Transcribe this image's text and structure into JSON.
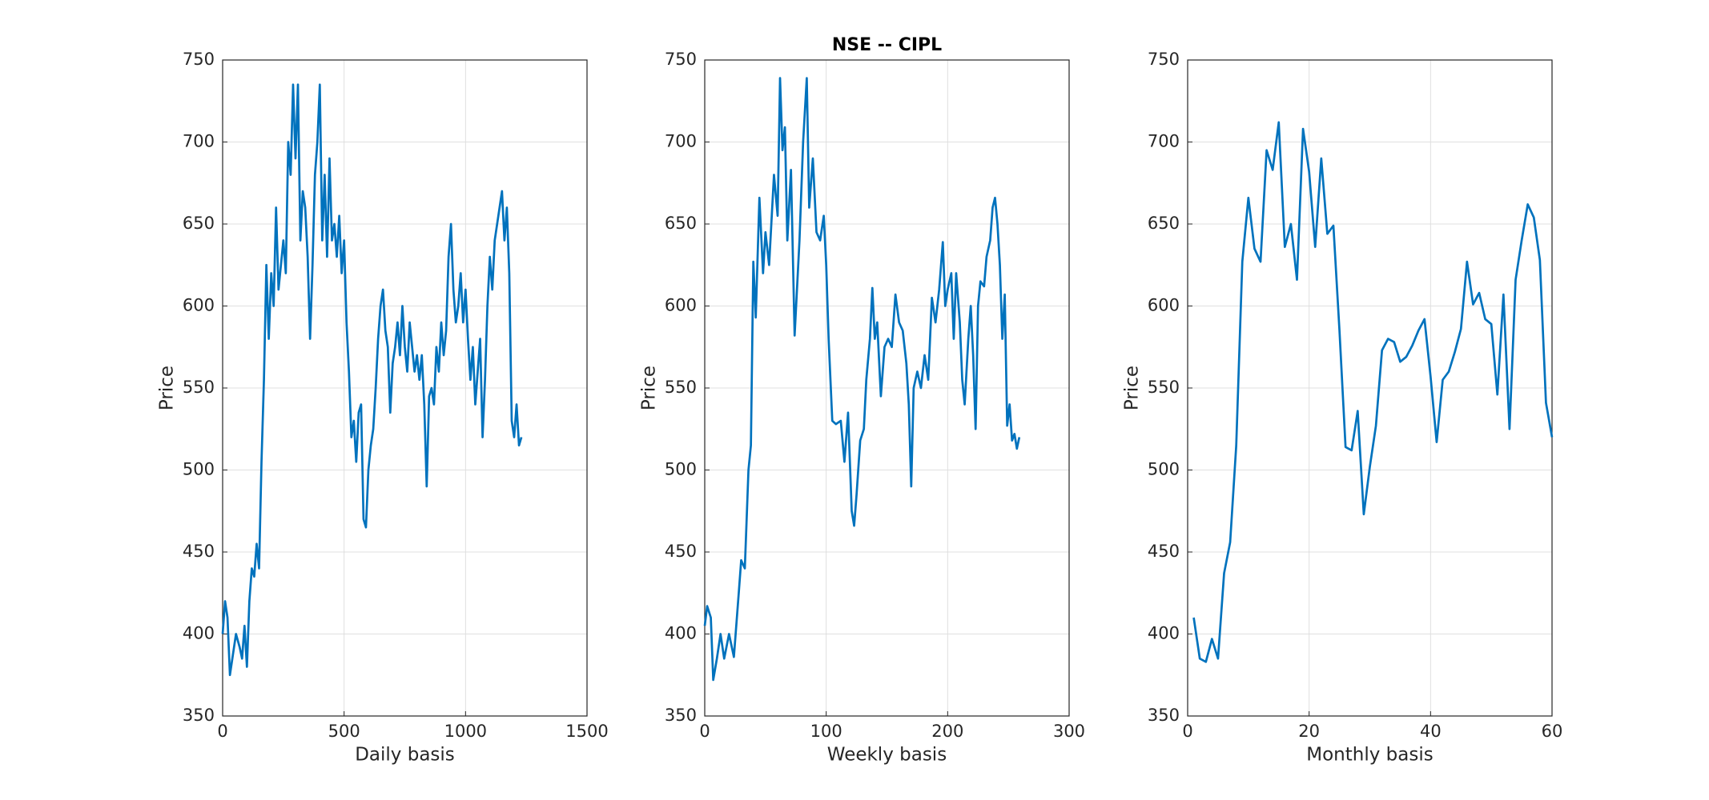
{
  "chart_data": [
    {
      "type": "line",
      "xlabel": "Daily basis",
      "ylabel": "Price",
      "xlim": [
        0,
        1500
      ],
      "xticks": [
        0,
        500,
        1000,
        1500
      ],
      "ylim": [
        350,
        750
      ],
      "yticks": [
        350,
        400,
        450,
        500,
        550,
        600,
        650,
        700,
        750
      ],
      "grid": true,
      "series": [
        {
          "color": "#0072bd",
          "x": [
            0,
            10,
            20,
            30,
            40,
            55,
            70,
            80,
            90,
            100,
            110,
            120,
            130,
            140,
            150,
            160,
            170,
            180,
            190,
            200,
            210,
            220,
            230,
            250,
            260,
            270,
            280,
            290,
            300,
            310,
            320,
            330,
            340,
            350,
            360,
            370,
            380,
            390,
            400,
            410,
            420,
            430,
            440,
            450,
            460,
            470,
            480,
            490,
            500,
            510,
            520,
            530,
            540,
            550,
            560,
            570,
            580,
            590,
            600,
            610,
            620,
            630,
            640,
            650,
            660,
            670,
            680,
            690,
            700,
            710,
            720,
            730,
            740,
            750,
            760,
            770,
            780,
            790,
            800,
            810,
            820,
            830,
            840,
            850,
            860,
            870,
            880,
            890,
            900,
            910,
            920,
            930,
            940,
            950,
            960,
            970,
            980,
            990,
            1000,
            1010,
            1020,
            1030,
            1040,
            1050,
            1060,
            1070,
            1080,
            1090,
            1100,
            1110,
            1120,
            1130,
            1140,
            1150,
            1160,
            1170,
            1180,
            1190,
            1200,
            1210,
            1220,
            1230
          ],
          "values": [
            400,
            420,
            410,
            375,
            385,
            400,
            392,
            385,
            405,
            380,
            420,
            440,
            435,
            455,
            440,
            505,
            555,
            625,
            580,
            620,
            600,
            660,
            610,
            640,
            620,
            700,
            680,
            735,
            690,
            735,
            640,
            670,
            660,
            630,
            580,
            625,
            680,
            700,
            735,
            640,
            680,
            630,
            690,
            640,
            650,
            630,
            655,
            620,
            640,
            590,
            560,
            520,
            530,
            505,
            535,
            540,
            470,
            465,
            500,
            515,
            525,
            550,
            580,
            600,
            610,
            585,
            575,
            535,
            565,
            575,
            590,
            570,
            600,
            575,
            560,
            590,
            575,
            560,
            570,
            555,
            570,
            540,
            490,
            545,
            550,
            540,
            575,
            560,
            590,
            570,
            585,
            630,
            650,
            610,
            590,
            600,
            620,
            590,
            610,
            580,
            555,
            575,
            540,
            560,
            580,
            520,
            555,
            600,
            630,
            610,
            640,
            650,
            660,
            670,
            640,
            660,
            620,
            530,
            520,
            540,
            515,
            520
          ]
        }
      ]
    },
    {
      "type": "line",
      "title": "NSE -- CIPL",
      "xlabel": "Weekly basis",
      "ylabel": "Price",
      "xlim": [
        0,
        300
      ],
      "xticks": [
        0,
        100,
        200,
        300
      ],
      "ylim": [
        350,
        750
      ],
      "yticks": [
        350,
        400,
        450,
        500,
        550,
        600,
        650,
        700,
        750
      ],
      "grid": true,
      "series": [
        {
          "color": "#0072bd",
          "x": [
            0,
            2,
            5,
            7,
            10,
            13,
            16,
            20,
            24,
            28,
            30,
            33,
            36,
            38,
            40,
            42,
            45,
            48,
            50,
            53,
            57,
            60,
            62,
            64,
            66,
            68,
            71,
            74,
            78,
            81,
            84,
            86,
            89,
            92,
            95,
            98,
            100,
            102,
            105,
            108,
            112,
            115,
            118,
            121,
            123,
            125,
            128,
            131,
            133,
            136,
            138,
            140,
            142,
            145,
            148,
            151,
            154,
            157,
            160,
            163,
            166,
            168,
            170,
            172,
            175,
            178,
            181,
            184,
            187,
            190,
            193,
            196,
            198,
            200,
            203,
            205,
            207,
            210,
            212,
            214,
            217,
            219,
            221,
            223,
            225,
            227,
            230,
            232,
            235,
            237,
            239,
            241,
            243,
            245,
            247,
            249,
            251,
            253,
            255,
            257,
            259
          ],
          "values": [
            405,
            417,
            410,
            372,
            385,
            400,
            385,
            400,
            386,
            425,
            445,
            440,
            500,
            515,
            627,
            593,
            666,
            620,
            645,
            625,
            680,
            655,
            739,
            695,
            709,
            640,
            683,
            582,
            640,
            700,
            739,
            660,
            690,
            645,
            640,
            655,
            625,
            580,
            530,
            528,
            530,
            505,
            535,
            475,
            466,
            485,
            518,
            525,
            555,
            580,
            611,
            580,
            590,
            545,
            575,
            580,
            575,
            607,
            590,
            585,
            565,
            540,
            490,
            550,
            560,
            550,
            570,
            555,
            605,
            590,
            610,
            639,
            600,
            610,
            620,
            580,
            620,
            590,
            555,
            540,
            580,
            600,
            570,
            525,
            600,
            615,
            612,
            630,
            640,
            660,
            666,
            650,
            625,
            580,
            607,
            527,
            540,
            518,
            522,
            513,
            520
          ]
        }
      ]
    },
    {
      "type": "line",
      "xlabel": "Monthly basis",
      "ylabel": "Price",
      "xlim": [
        0,
        60
      ],
      "xticks": [
        0,
        20,
        40,
        60
      ],
      "ylim": [
        350,
        750
      ],
      "yticks": [
        350,
        400,
        450,
        500,
        550,
        600,
        650,
        700,
        750
      ],
      "grid": true,
      "series": [
        {
          "color": "#0072bd",
          "x": [
            1,
            2,
            3,
            4,
            5,
            6,
            7,
            8,
            9,
            10,
            11,
            12,
            13,
            14,
            15,
            16,
            17,
            18,
            19,
            20,
            21,
            22,
            23,
            24,
            25,
            26,
            27,
            28,
            29,
            30,
            31,
            32,
            33,
            34,
            35,
            36,
            37,
            38,
            39,
            40,
            41,
            42,
            43,
            44,
            45,
            46,
            47,
            48,
            49,
            50,
            51,
            52,
            53,
            54,
            55,
            56,
            57,
            58,
            59,
            60
          ],
          "values": [
            410,
            385,
            383,
            397,
            385,
            437,
            456,
            515,
            627,
            666,
            635,
            627,
            695,
            683,
            712,
            636,
            650,
            616,
            708,
            682,
            636,
            690,
            644,
            649,
            585,
            514,
            512,
            536,
            473,
            502,
            527,
            573,
            580,
            578,
            566,
            569,
            576,
            585,
            592,
            557,
            517,
            555,
            560,
            572,
            586,
            627,
            601,
            608,
            592,
            589,
            546,
            607,
            525,
            616,
            640,
            662,
            654,
            628,
            541,
            520
          ]
        }
      ]
    }
  ]
}
